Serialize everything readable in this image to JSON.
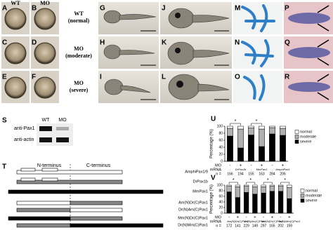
{
  "figure": {
    "panel_letters": [
      "A",
      "B",
      "C",
      "D",
      "E",
      "F",
      "G",
      "H",
      "I",
      "J",
      "K",
      "L",
      "M",
      "N",
      "O",
      "P",
      "Q",
      "R",
      "S",
      "T",
      "U",
      "V"
    ],
    "column_headers": [
      "WT",
      "MO"
    ],
    "row_labels": [
      [
        "WT",
        "(normal)"
      ],
      [
        "MO",
        "(moderate)"
      ],
      [
        "MO",
        "(severe)"
      ]
    ],
    "western": {
      "lanes": [
        "WT",
        "MO"
      ],
      "antibodies": [
        "anti-Pax1",
        "anti-actin"
      ]
    },
    "diagram": {
      "terminals": [
        "N-terminus",
        "C-terminus"
      ],
      "constructs": [
        "AmphiPax1/9",
        "DrPax1b",
        "MmPax1",
        "Am(N)Dr(C)Pax1",
        "Dr(N)Am(C)Pax1",
        "Mm(N)Dr(C)Pax1",
        "Dr(N)Mm(C)Pax1"
      ]
    }
  },
  "chart_data": [
    {
      "type": "stacked-bar",
      "ylabel": "Percentage (%)",
      "ylim": [
        0,
        100
      ],
      "yticks": [
        0,
        20,
        40,
        60,
        80,
        100
      ],
      "series": [
        {
          "name": "severe",
          "color": "#000000",
          "values": [
            72,
            38,
            75,
            42,
            78,
            74
          ]
        },
        {
          "name": "moderate",
          "color": "#b0b0b0",
          "values": [
            22,
            54,
            20,
            50,
            18,
            20
          ]
        },
        {
          "name": "normal",
          "color": "#ffffff",
          "values": [
            6,
            8,
            5,
            8,
            4,
            6
          ]
        }
      ],
      "mo_label": "MO",
      "mo": [
        "-",
        "+",
        "-",
        "+",
        "-",
        "+"
      ],
      "mrna_label": "mRNA",
      "mrna": [
        "-",
        "DrPax1b",
        "-",
        "MmPax1",
        "-",
        "AmphiPax1"
      ],
      "n_label": "n =",
      "n": [
        166,
        194,
        155,
        163,
        284,
        206
      ],
      "stars": [
        "*",
        "*"
      ]
    },
    {
      "type": "stacked-bar",
      "ylabel": "Percentage (%)",
      "ylim": [
        0,
        100
      ],
      "yticks": [
        0,
        20,
        40,
        60,
        80,
        100
      ],
      "series": [
        {
          "name": "severe",
          "color": "#000000",
          "values": [
            76,
            56,
            74,
            68,
            72,
            78,
            78,
            52
          ]
        },
        {
          "name": "moderate",
          "color": "#b0b0b0",
          "values": [
            20,
            38,
            22,
            26,
            22,
            18,
            18,
            40
          ]
        },
        {
          "name": "normal",
          "color": "#ffffff",
          "values": [
            4,
            6,
            4,
            6,
            6,
            4,
            4,
            8
          ]
        }
      ],
      "mo_label": "MO",
      "mo": [
        "-",
        "+",
        "-",
        "+",
        "-",
        "+",
        "-",
        "+"
      ],
      "mrna_label": "mRNA",
      "mrna": [
        "-",
        "Am(N)Dr(C)Pax1",
        "-",
        "Dr(N)Am(C)Pax1",
        "-",
        "Mm(N)Dr(C)Pax1",
        "-",
        "Dr(N)Mm(C)Pax1"
      ],
      "n_label": "n =",
      "n": [
        172,
        141,
        229,
        149,
        297,
        165,
        202,
        159
      ],
      "stars": [
        "*",
        "*",
        "*",
        "*"
      ]
    }
  ]
}
